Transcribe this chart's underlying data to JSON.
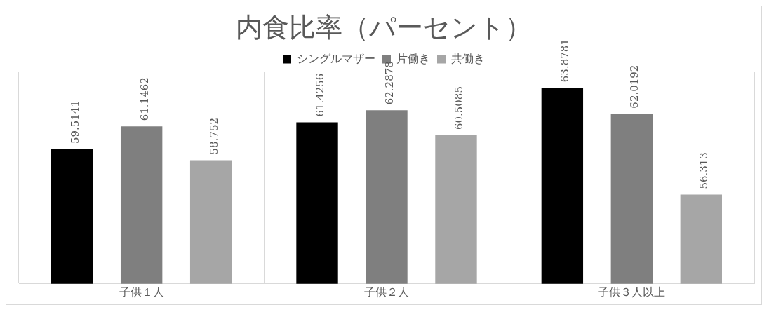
{
  "chart_data": {
    "type": "bar",
    "title": "内食比率（パーセント）",
    "categories": [
      "子供１人",
      "子供２人",
      "子供３人以上"
    ],
    "series": [
      {
        "name": "シングルマザー",
        "color": "#000000",
        "values": [
          59.5141,
          61.4256,
          63.8781
        ]
      },
      {
        "name": "片働き",
        "color": "#7f7f7f",
        "values": [
          61.1462,
          62.2878,
          62.0192
        ]
      },
      {
        "name": "共働き",
        "color": "#a6a6a6",
        "values": [
          58.752,
          60.5085,
          56.313
        ]
      }
    ],
    "ylim": [
      50,
      65
    ],
    "tick_labels": "x",
    "grid": "x",
    "legend": "top",
    "data_labels": true
  }
}
